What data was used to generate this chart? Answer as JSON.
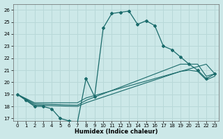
{
  "xlabel": "Humidex (Indice chaleur)",
  "bg_color": "#cce8e8",
  "grid_color": "#b8d8d8",
  "line_color": "#1a6b6b",
  "xlim": [
    -0.5,
    23.5
  ],
  "ylim": [
    16.8,
    26.5
  ],
  "yticks": [
    17,
    18,
    19,
    20,
    21,
    22,
    23,
    24,
    25,
    26
  ],
  "xticks": [
    0,
    1,
    2,
    3,
    4,
    5,
    6,
    7,
    8,
    9,
    10,
    11,
    12,
    13,
    14,
    15,
    16,
    17,
    18,
    19,
    20,
    21,
    22,
    23
  ],
  "main_line_x": [
    0,
    1,
    2,
    3,
    4,
    5,
    6,
    7,
    8,
    9,
    10,
    11,
    12,
    13,
    14,
    15,
    16,
    17,
    18,
    19,
    20,
    21,
    22,
    23
  ],
  "main_line_y": [
    19.0,
    18.5,
    18.0,
    18.0,
    17.8,
    17.0,
    16.8,
    16.7,
    20.3,
    18.8,
    24.5,
    25.7,
    25.8,
    25.9,
    24.8,
    25.1,
    24.7,
    23.0,
    22.7,
    22.1,
    21.5,
    21.0,
    20.3,
    20.7
  ],
  "line2_x": [
    0,
    2,
    7,
    8,
    22,
    23
  ],
  "line2_y": [
    19.0,
    18.3,
    18.3,
    18.7,
    21.5,
    20.7
  ],
  "line3_x": [
    0,
    2,
    7,
    8,
    19,
    20,
    21,
    22,
    23
  ],
  "line3_y": [
    19.0,
    18.2,
    18.1,
    18.5,
    21.5,
    21.5,
    21.5,
    20.5,
    20.7
  ],
  "line4_x": [
    0,
    2,
    7,
    8,
    19,
    20,
    21,
    22,
    23
  ],
  "line4_y": [
    19.0,
    18.1,
    18.0,
    18.3,
    20.9,
    21.0,
    20.9,
    20.2,
    20.5
  ]
}
